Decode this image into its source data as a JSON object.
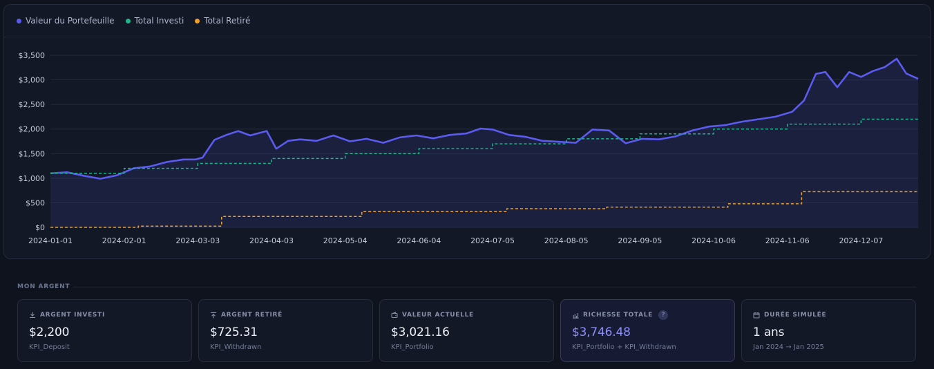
{
  "legend": [
    {
      "label": "Valeur du Portefeuille",
      "color": "#5b5bf0"
    },
    {
      "label": "Total Investi",
      "color": "#1fb68a"
    },
    {
      "label": "Total Retiré",
      "color": "#f0a023"
    }
  ],
  "chart_data": {
    "type": "line",
    "y_ticks": [
      "$3,500",
      "$3,000",
      "$2,500",
      "$2,000",
      "$1,500",
      "$1,000",
      "$500",
      "$0"
    ],
    "ylim": [
      0,
      3500
    ],
    "x_ticks": [
      "2024-01-01",
      "2024-02-01",
      "2024-03-03",
      "2024-04-03",
      "2024-05-04",
      "2024-06-04",
      "2024-07-05",
      "2024-08-05",
      "2024-09-05",
      "2024-10-06",
      "2024-11-06",
      "2024-12-07"
    ],
    "x_range": [
      "2024-01-01",
      "2024-12-31"
    ],
    "grid": true,
    "series": [
      {
        "name": "Valeur du Portefeuille",
        "color": "#5b5bf0",
        "style": "solid-area",
        "points": [
          [
            "2024-01-01",
            1100
          ],
          [
            "2024-01-08",
            1120
          ],
          [
            "2024-01-15",
            1050
          ],
          [
            "2024-01-22",
            990
          ],
          [
            "2024-01-29",
            1060
          ],
          [
            "2024-02-05",
            1200
          ],
          [
            "2024-02-12",
            1240
          ],
          [
            "2024-02-19",
            1330
          ],
          [
            "2024-02-26",
            1380
          ],
          [
            "2024-03-02",
            1380
          ],
          [
            "2024-03-05",
            1420
          ],
          [
            "2024-03-10",
            1780
          ],
          [
            "2024-03-15",
            1880
          ],
          [
            "2024-03-20",
            1960
          ],
          [
            "2024-03-25",
            1870
          ],
          [
            "2024-04-01",
            1960
          ],
          [
            "2024-04-05",
            1600
          ],
          [
            "2024-04-10",
            1760
          ],
          [
            "2024-04-15",
            1790
          ],
          [
            "2024-04-22",
            1760
          ],
          [
            "2024-04-29",
            1870
          ],
          [
            "2024-05-06",
            1750
          ],
          [
            "2024-05-13",
            1800
          ],
          [
            "2024-05-20",
            1720
          ],
          [
            "2024-05-27",
            1830
          ],
          [
            "2024-06-03",
            1870
          ],
          [
            "2024-06-10",
            1810
          ],
          [
            "2024-06-17",
            1880
          ],
          [
            "2024-06-24",
            1910
          ],
          [
            "2024-06-30",
            2010
          ],
          [
            "2024-07-05",
            1990
          ],
          [
            "2024-07-12",
            1880
          ],
          [
            "2024-07-19",
            1840
          ],
          [
            "2024-07-26",
            1760
          ],
          [
            "2024-08-02",
            1740
          ],
          [
            "2024-08-09",
            1720
          ],
          [
            "2024-08-16",
            1990
          ],
          [
            "2024-08-23",
            1970
          ],
          [
            "2024-08-30",
            1710
          ],
          [
            "2024-09-06",
            1800
          ],
          [
            "2024-09-13",
            1790
          ],
          [
            "2024-09-20",
            1850
          ],
          [
            "2024-09-27",
            1970
          ],
          [
            "2024-10-04",
            2050
          ],
          [
            "2024-10-11",
            2080
          ],
          [
            "2024-10-18",
            2150
          ],
          [
            "2024-10-25",
            2200
          ],
          [
            "2024-11-01",
            2250
          ],
          [
            "2024-11-08",
            2350
          ],
          [
            "2024-11-13",
            2580
          ],
          [
            "2024-11-18",
            3120
          ],
          [
            "2024-11-22",
            3160
          ],
          [
            "2024-11-27",
            2850
          ],
          [
            "2024-12-02",
            3160
          ],
          [
            "2024-12-07",
            3060
          ],
          [
            "2024-12-12",
            3180
          ],
          [
            "2024-12-17",
            3260
          ],
          [
            "2024-12-22",
            3430
          ],
          [
            "2024-12-26",
            3130
          ],
          [
            "2024-12-31",
            3021
          ]
        ]
      },
      {
        "name": "Total Investi",
        "color": "#1fb68a",
        "style": "dashed-step",
        "points": [
          [
            "2024-01-01",
            1100
          ],
          [
            "2024-02-01",
            1200
          ],
          [
            "2024-03-03",
            1300
          ],
          [
            "2024-04-03",
            1400
          ],
          [
            "2024-05-04",
            1500
          ],
          [
            "2024-06-04",
            1600
          ],
          [
            "2024-07-05",
            1700
          ],
          [
            "2024-08-05",
            1800
          ],
          [
            "2024-09-05",
            1900
          ],
          [
            "2024-10-06",
            2000
          ],
          [
            "2024-11-06",
            2100
          ],
          [
            "2024-12-07",
            2200
          ],
          [
            "2024-12-31",
            2200
          ]
        ]
      },
      {
        "name": "Total Retiré",
        "color": "#f0a023",
        "style": "dashed-step",
        "points": [
          [
            "2024-01-01",
            0
          ],
          [
            "2024-02-07",
            25
          ],
          [
            "2024-03-13",
            220
          ],
          [
            "2024-05-11",
            320
          ],
          [
            "2024-07-11",
            380
          ],
          [
            "2024-08-22",
            410
          ],
          [
            "2024-10-12",
            480
          ],
          [
            "2024-11-12",
            725.31
          ],
          [
            "2024-12-31",
            725.31
          ]
        ]
      }
    ]
  },
  "section_title": "MON ARGENT",
  "kpis": [
    {
      "icon": "download-icon",
      "label": "ARGENT INVESTI",
      "value": "$2,200",
      "sub": "KPI_Deposit"
    },
    {
      "icon": "upload-icon",
      "label": "ARGENT RETIRÉ",
      "value": "$725.31",
      "sub": "KPI_Withdrawn"
    },
    {
      "icon": "wallet-icon",
      "label": "VALEUR ACTUELLE",
      "value": "$3,021.16",
      "sub": "KPI_Portfolio"
    },
    {
      "icon": "bar-chart-icon",
      "label": "RICHESSE TOTALE",
      "value": "$3,746.48",
      "sub": "KPI_Portfolio + KPI_Withdrawn",
      "help": "?"
    },
    {
      "icon": "calendar-icon",
      "label": "DURÉE SIMULÉE",
      "value": "1 ans",
      "sub": "Jan 2024 → Jan 2025"
    }
  ]
}
